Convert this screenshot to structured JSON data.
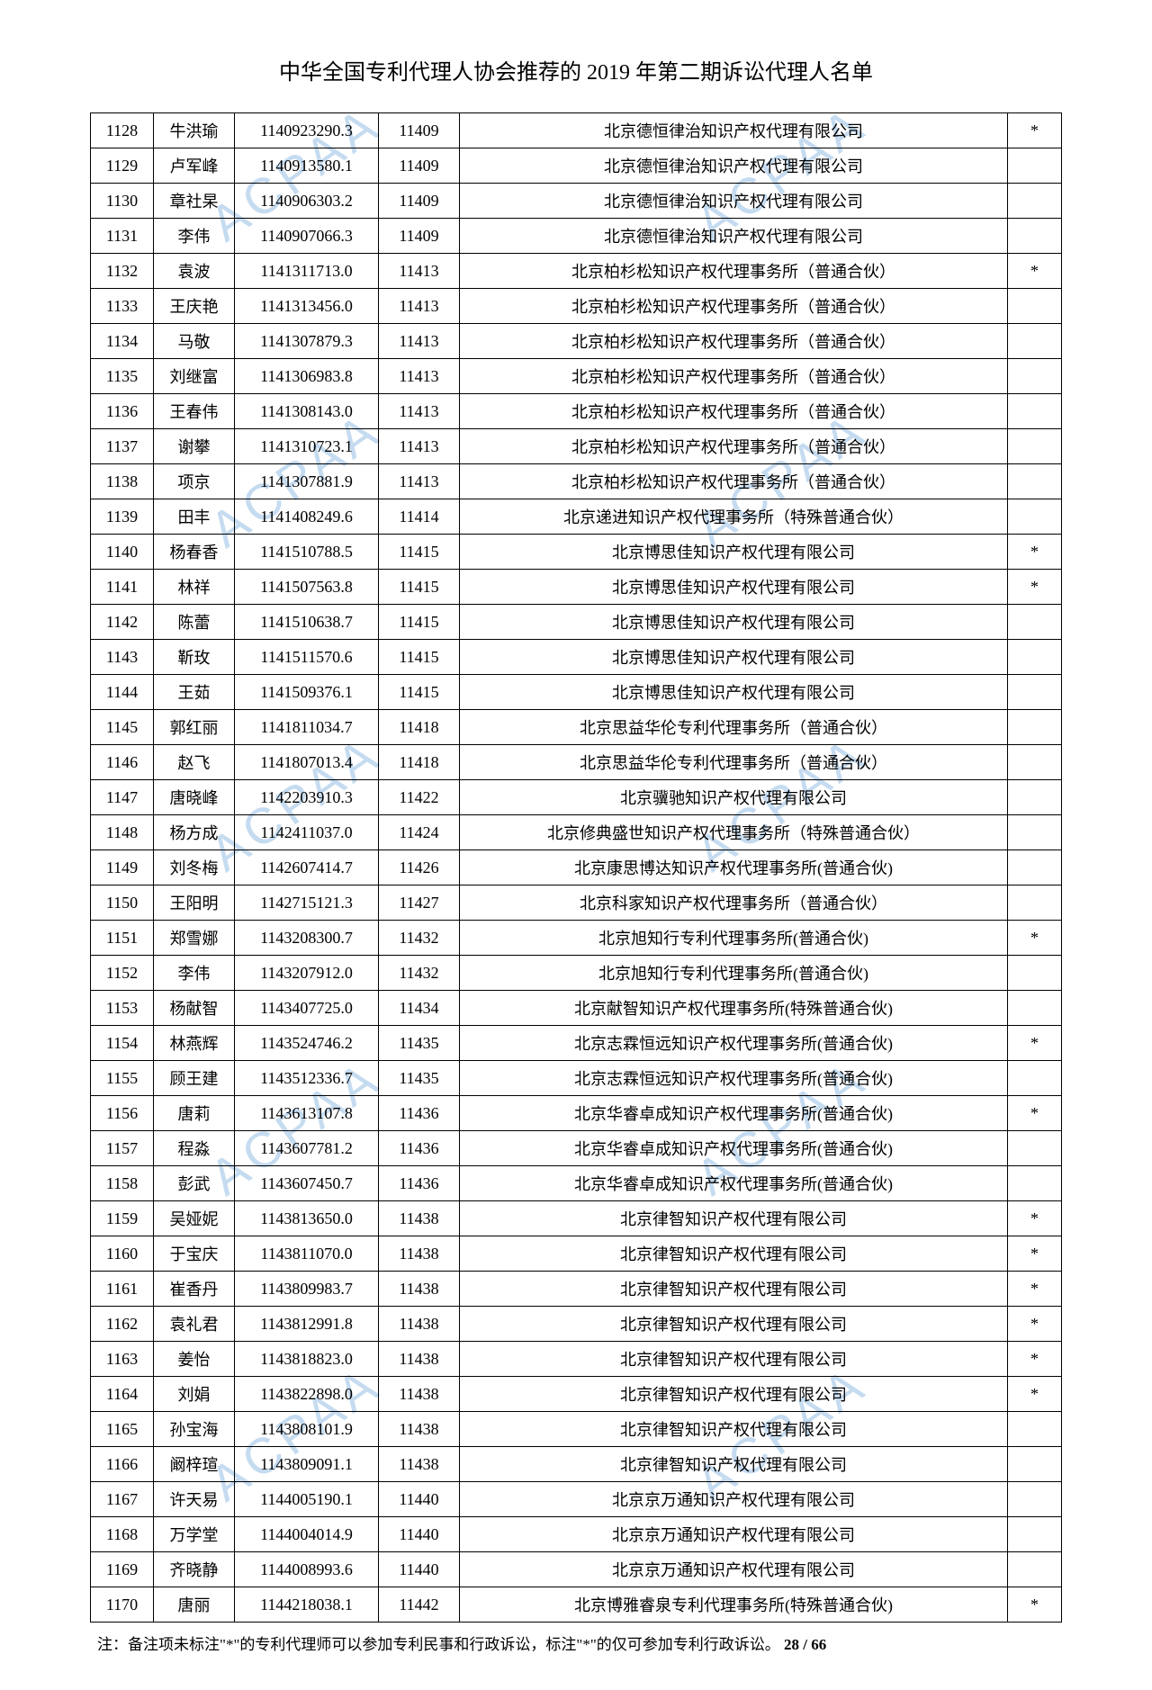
{
  "title": "中华全国专利代理人协会推荐的 2019 年第二期诉讼代理人名单",
  "footnote_prefix": "注：备注项未标注\"*\"的专利代理师可以参加专利民事和行政诉讼，标注\"*\"的仅可参加专利行政诉讼。",
  "page_current": "28",
  "page_sep": " / ",
  "page_total": "66",
  "watermark_text": "ACPAA",
  "rows": [
    {
      "idx": "1128",
      "name": "牛洪瑜",
      "num": "1140923290.3",
      "code": "11409",
      "org": "北京德恒律治知识产权代理有限公司",
      "star": "*"
    },
    {
      "idx": "1129",
      "name": "卢军峰",
      "num": "1140913580.1",
      "code": "11409",
      "org": "北京德恒律治知识产权代理有限公司",
      "star": ""
    },
    {
      "idx": "1130",
      "name": "章社杲",
      "num": "1140906303.2",
      "code": "11409",
      "org": "北京德恒律治知识产权代理有限公司",
      "star": ""
    },
    {
      "idx": "1131",
      "name": "李伟",
      "num": "1140907066.3",
      "code": "11409",
      "org": "北京德恒律治知识产权代理有限公司",
      "star": ""
    },
    {
      "idx": "1132",
      "name": "袁波",
      "num": "1141311713.0",
      "code": "11413",
      "org": "北京柏杉松知识产权代理事务所（普通合伙）",
      "star": "*"
    },
    {
      "idx": "1133",
      "name": "王庆艳",
      "num": "1141313456.0",
      "code": "11413",
      "org": "北京柏杉松知识产权代理事务所（普通合伙）",
      "star": ""
    },
    {
      "idx": "1134",
      "name": "马敬",
      "num": "1141307879.3",
      "code": "11413",
      "org": "北京柏杉松知识产权代理事务所（普通合伙）",
      "star": ""
    },
    {
      "idx": "1135",
      "name": "刘继富",
      "num": "1141306983.8",
      "code": "11413",
      "org": "北京柏杉松知识产权代理事务所（普通合伙）",
      "star": ""
    },
    {
      "idx": "1136",
      "name": "王春伟",
      "num": "1141308143.0",
      "code": "11413",
      "org": "北京柏杉松知识产权代理事务所（普通合伙）",
      "star": ""
    },
    {
      "idx": "1137",
      "name": "谢攀",
      "num": "1141310723.1",
      "code": "11413",
      "org": "北京柏杉松知识产权代理事务所（普通合伙）",
      "star": ""
    },
    {
      "idx": "1138",
      "name": "项京",
      "num": "1141307881.9",
      "code": "11413",
      "org": "北京柏杉松知识产权代理事务所（普通合伙）",
      "star": ""
    },
    {
      "idx": "1139",
      "name": "田丰",
      "num": "1141408249.6",
      "code": "11414",
      "org": "北京递进知识产权代理事务所（特殊普通合伙）",
      "star": ""
    },
    {
      "idx": "1140",
      "name": "杨春香",
      "num": "1141510788.5",
      "code": "11415",
      "org": "北京博思佳知识产权代理有限公司",
      "star": "*"
    },
    {
      "idx": "1141",
      "name": "林祥",
      "num": "1141507563.8",
      "code": "11415",
      "org": "北京博思佳知识产权代理有限公司",
      "star": "*"
    },
    {
      "idx": "1142",
      "name": "陈蕾",
      "num": "1141510638.7",
      "code": "11415",
      "org": "北京博思佳知识产权代理有限公司",
      "star": ""
    },
    {
      "idx": "1143",
      "name": "靳玫",
      "num": "1141511570.6",
      "code": "11415",
      "org": "北京博思佳知识产权代理有限公司",
      "star": ""
    },
    {
      "idx": "1144",
      "name": "王茹",
      "num": "1141509376.1",
      "code": "11415",
      "org": "北京博思佳知识产权代理有限公司",
      "star": ""
    },
    {
      "idx": "1145",
      "name": "郭红丽",
      "num": "1141811034.7",
      "code": "11418",
      "org": "北京思益华伦专利代理事务所（普通合伙）",
      "star": ""
    },
    {
      "idx": "1146",
      "name": "赵飞",
      "num": "1141807013.4",
      "code": "11418",
      "org": "北京思益华伦专利代理事务所（普通合伙）",
      "star": ""
    },
    {
      "idx": "1147",
      "name": "唐晓峰",
      "num": "1142203910.3",
      "code": "11422",
      "org": "北京骥驰知识产权代理有限公司",
      "star": ""
    },
    {
      "idx": "1148",
      "name": "杨方成",
      "num": "1142411037.0",
      "code": "11424",
      "org": "北京修典盛世知识产权代理事务所（特殊普通合伙）",
      "star": ""
    },
    {
      "idx": "1149",
      "name": "刘冬梅",
      "num": "1142607414.7",
      "code": "11426",
      "org": "北京康思博达知识产权代理事务所(普通合伙)",
      "star": ""
    },
    {
      "idx": "1150",
      "name": "王阳明",
      "num": "1142715121.3",
      "code": "11427",
      "org": "北京科家知识产权代理事务所（普通合伙）",
      "star": ""
    },
    {
      "idx": "1151",
      "name": "郑雪娜",
      "num": "1143208300.7",
      "code": "11432",
      "org": "北京旭知行专利代理事务所(普通合伙)",
      "star": "*"
    },
    {
      "idx": "1152",
      "name": "李伟",
      "num": "1143207912.0",
      "code": "11432",
      "org": "北京旭知行专利代理事务所(普通合伙)",
      "star": ""
    },
    {
      "idx": "1153",
      "name": "杨献智",
      "num": "1143407725.0",
      "code": "11434",
      "org": "北京献智知识产权代理事务所(特殊普通合伙)",
      "star": ""
    },
    {
      "idx": "1154",
      "name": "林燕辉",
      "num": "1143524746.2",
      "code": "11435",
      "org": "北京志霖恒远知识产权代理事务所(普通合伙)",
      "star": "*"
    },
    {
      "idx": "1155",
      "name": "顾王建",
      "num": "1143512336.7",
      "code": "11435",
      "org": "北京志霖恒远知识产权代理事务所(普通合伙)",
      "star": ""
    },
    {
      "idx": "1156",
      "name": "唐莉",
      "num": "1143613107.8",
      "code": "11436",
      "org": "北京华睿卓成知识产权代理事务所(普通合伙)",
      "star": "*"
    },
    {
      "idx": "1157",
      "name": "程淼",
      "num": "1143607781.2",
      "code": "11436",
      "org": "北京华睿卓成知识产权代理事务所(普通合伙)",
      "star": ""
    },
    {
      "idx": "1158",
      "name": "彭武",
      "num": "1143607450.7",
      "code": "11436",
      "org": "北京华睿卓成知识产权代理事务所(普通合伙)",
      "star": ""
    },
    {
      "idx": "1159",
      "name": "吴娅妮",
      "num": "1143813650.0",
      "code": "11438",
      "org": "北京律智知识产权代理有限公司",
      "star": "*"
    },
    {
      "idx": "1160",
      "name": "于宝庆",
      "num": "1143811070.0",
      "code": "11438",
      "org": "北京律智知识产权代理有限公司",
      "star": "*"
    },
    {
      "idx": "1161",
      "name": "崔香丹",
      "num": "1143809983.7",
      "code": "11438",
      "org": "北京律智知识产权代理有限公司",
      "star": "*"
    },
    {
      "idx": "1162",
      "name": "袁礼君",
      "num": "1143812991.8",
      "code": "11438",
      "org": "北京律智知识产权代理有限公司",
      "star": "*"
    },
    {
      "idx": "1163",
      "name": "姜怡",
      "num": "1143818823.0",
      "code": "11438",
      "org": "北京律智知识产权代理有限公司",
      "star": "*"
    },
    {
      "idx": "1164",
      "name": "刘娟",
      "num": "1143822898.0",
      "code": "11438",
      "org": "北京律智知识产权代理有限公司",
      "star": "*"
    },
    {
      "idx": "1165",
      "name": "孙宝海",
      "num": "1143808101.9",
      "code": "11438",
      "org": "北京律智知识产权代理有限公司",
      "star": ""
    },
    {
      "idx": "1166",
      "name": "阚梓瑄",
      "num": "1143809091.1",
      "code": "11438",
      "org": "北京律智知识产权代理有限公司",
      "star": ""
    },
    {
      "idx": "1167",
      "name": "许天易",
      "num": "1144005190.1",
      "code": "11440",
      "org": "北京京万通知识产权代理有限公司",
      "star": ""
    },
    {
      "idx": "1168",
      "name": "万学堂",
      "num": "1144004014.9",
      "code": "11440",
      "org": "北京京万通知识产权代理有限公司",
      "star": ""
    },
    {
      "idx": "1169",
      "name": "齐晓静",
      "num": "1144008993.6",
      "code": "11440",
      "org": "北京京万通知识产权代理有限公司",
      "star": ""
    },
    {
      "idx": "1170",
      "name": "唐丽",
      "num": "1144218038.1",
      "code": "11442",
      "org": "北京博雅睿泉专利代理事务所(特殊普通合伙)",
      "star": "*"
    }
  ]
}
